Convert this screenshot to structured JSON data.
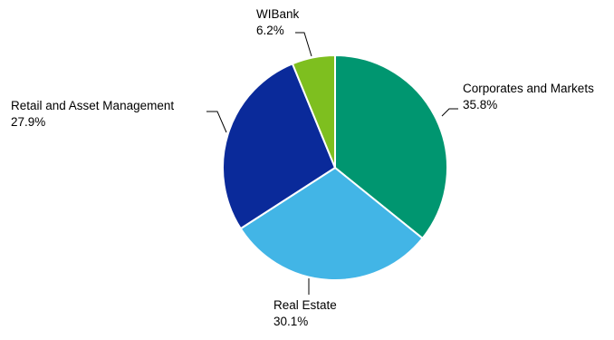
{
  "chart_data": {
    "type": "pie",
    "start": "12 o'clock",
    "direction": "clockwise",
    "slices": [
      {
        "label": "Corporates and Markets",
        "value": 35.8,
        "value_label": "35.8%",
        "color": "#009670"
      },
      {
        "label": "Real Estate",
        "value": 30.1,
        "value_label": "30.1%",
        "color": "#42b5e6"
      },
      {
        "label": "Retail and Asset Management",
        "value": 27.9,
        "value_label": "27.9%",
        "color": "#0a2a9a"
      },
      {
        "label": "WIBank",
        "value": 6.2,
        "value_label": "6.2%",
        "color": "#7ebf1f"
      }
    ],
    "slice_border_color": "#ffffff",
    "leader_line_color": "#000000"
  }
}
